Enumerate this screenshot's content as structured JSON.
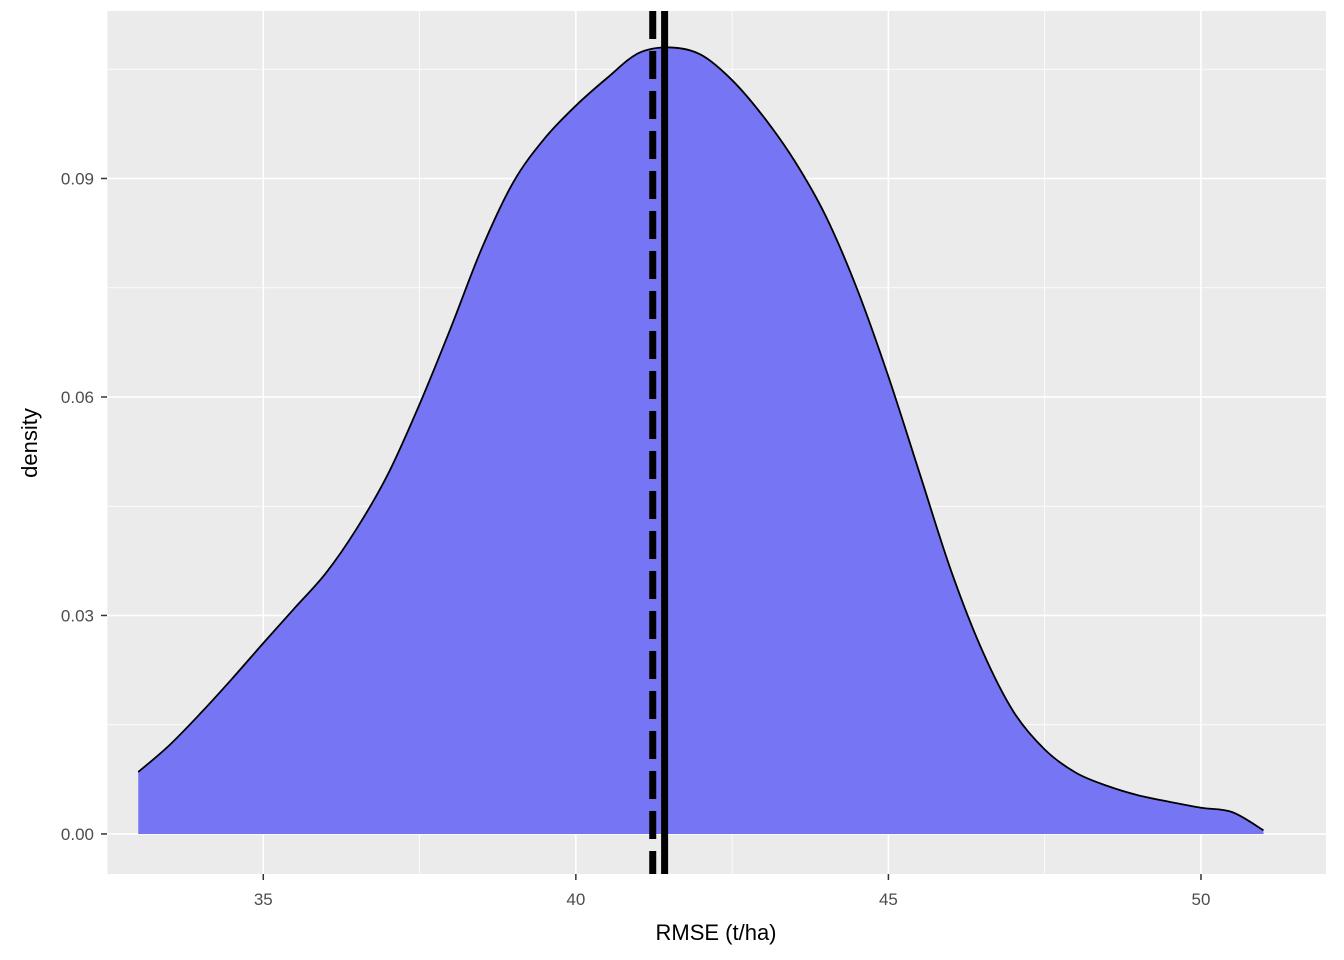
{
  "chart_data": {
    "type": "area",
    "subtype": "density",
    "title": "",
    "xlabel": "RMSE (t/ha)",
    "ylabel": "density",
    "xlim": [
      32.5,
      52.0
    ],
    "ylim": [
      -0.0055,
      0.113
    ],
    "x_ticks": [
      35,
      40,
      45,
      50
    ],
    "x_tick_labels": [
      "35",
      "40",
      "45",
      "50"
    ],
    "y_ticks": [
      0.0,
      0.03,
      0.06,
      0.09
    ],
    "y_tick_labels": [
      "0.00",
      "0.03",
      "0.06",
      "0.09"
    ],
    "grid": true,
    "legend": "none",
    "series": [
      {
        "x": [
          33.0,
          33.5,
          34.0,
          34.5,
          35.0,
          35.5,
          36.0,
          36.5,
          37.0,
          37.5,
          38.0,
          38.5,
          39.0,
          39.5,
          40.0,
          40.5,
          41.0,
          41.5,
          42.0,
          42.5,
          43.0,
          43.5,
          44.0,
          44.5,
          45.0,
          45.5,
          46.0,
          46.5,
          47.0,
          47.5,
          48.0,
          48.5,
          49.0,
          49.5,
          50.0,
          50.5,
          51.0
        ],
        "y": [
          0.0085,
          0.0122,
          0.0166,
          0.0213,
          0.0262,
          0.031,
          0.0358,
          0.042,
          0.0495,
          0.059,
          0.0695,
          0.0805,
          0.0895,
          0.0955,
          0.1,
          0.1038,
          0.1072,
          0.108,
          0.107,
          0.1035,
          0.0985,
          0.0924,
          0.0848,
          0.0748,
          0.0628,
          0.0495,
          0.0362,
          0.0252,
          0.0168,
          0.0116,
          0.0084,
          0.0066,
          0.0053,
          0.0044,
          0.0036,
          0.003,
          0.0005
        ]
      }
    ],
    "fill_color": "#7676f4",
    "outline_color": "#000000",
    "reference_lines": [
      {
        "x": 41.23,
        "style": "dashed",
        "color": "#000000"
      },
      {
        "x": 41.42,
        "style": "solid",
        "color": "#000000"
      }
    ],
    "panel_background": "#ebebeb",
    "grid_color": "#ffffff"
  }
}
